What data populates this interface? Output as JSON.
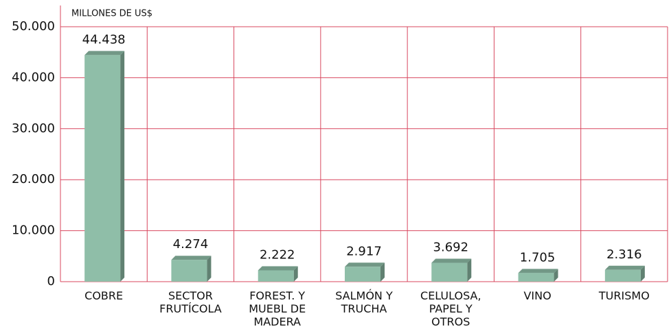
{
  "chart_data": {
    "type": "bar",
    "y_axis_label": "MILLONES DE US$",
    "categories": [
      "COBRE",
      "SECTOR FRUTÍCOLA",
      "FOREST. Y MUEBL DE MADERA",
      "SALMÓN Y TRUCHA",
      "CELULOSA, PAPEL Y OTROS",
      "VINO",
      "TURISMO"
    ],
    "values": [
      44438,
      4274,
      2222,
      2917,
      3692,
      1705,
      2316
    ],
    "value_labels": [
      "44.438",
      "4.274",
      "2.222",
      "2.917",
      "3.692",
      "1.705",
      "2.316"
    ],
    "color": "#8fbea8",
    "ylim": [
      0,
      50000
    ],
    "yticks": [
      {
        "value": 0,
        "label": "0"
      },
      {
        "value": 10000,
        "label": "10.000"
      },
      {
        "value": 20000,
        "label": "20.000"
      },
      {
        "value": 30000,
        "label": "30.000"
      },
      {
        "value": 40000,
        "label": "40.000"
      },
      {
        "value": 50000,
        "label": "50.000"
      }
    ],
    "grid": true
  }
}
